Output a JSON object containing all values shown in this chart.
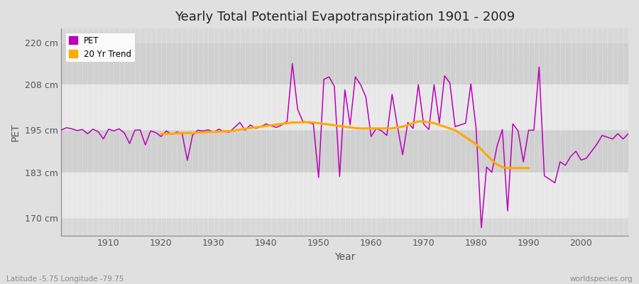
{
  "title": "Yearly Total Potential Evapotranspiration 1901 - 2009",
  "xlabel": "Year",
  "ylabel": "PET",
  "bottom_left": "Latitude -5.75 Longitude -79.75",
  "bottom_right": "worldspecies.org",
  "start_year": 1901,
  "end_year": 2009,
  "pet_color": "#bb00bb",
  "trend_color": "#ffaa00",
  "background_color": "#e0e0e0",
  "plot_bg_color": "#d8d8d8",
  "grid_color": "#ffffff",
  "ytick_labels": [
    "170 cm",
    "183 cm",
    "195 cm",
    "208 cm",
    "220 cm"
  ],
  "ytick_values": [
    170,
    183,
    195,
    208,
    220
  ],
  "ylim": [
    165,
    224
  ],
  "pet_values": [
    195.1,
    195.7,
    195.4,
    194.9,
    195.2,
    194.0,
    195.3,
    194.6,
    192.5,
    195.3,
    194.8,
    195.4,
    194.2,
    191.2,
    195.0,
    195.1,
    190.8,
    194.8,
    194.3,
    193.2,
    194.8,
    193.8,
    194.5,
    194.0,
    186.4,
    193.6,
    195.0,
    194.8,
    195.1,
    194.4,
    195.3,
    194.6,
    194.5,
    195.8,
    197.2,
    195.0,
    196.5,
    195.5,
    196.0,
    196.8,
    196.2,
    195.8,
    196.5,
    197.5,
    214.0,
    201.0,
    197.5,
    197.2,
    196.8,
    181.5,
    209.5,
    210.2,
    207.5,
    181.8,
    206.5,
    196.5,
    210.2,
    208.0,
    204.5,
    193.2,
    195.5,
    194.8,
    193.5,
    205.2,
    196.2,
    188.0,
    197.2,
    195.5,
    208.0,
    196.8,
    195.2,
    208.0,
    197.0,
    210.5,
    208.5,
    196.0,
    196.5,
    197.0,
    208.2,
    195.5,
    167.2,
    184.5,
    183.0,
    190.5,
    195.2,
    172.0,
    196.8,
    194.8,
    186.0,
    195.0,
    195.0,
    213.0,
    182.0,
    181.0,
    180.0,
    186.0,
    185.0,
    187.5,
    189.0,
    186.5,
    187.0,
    189.0,
    191.0,
    193.5,
    193.0,
    192.5,
    194.0,
    192.5,
    194.0
  ],
  "trend_values": [
    null,
    null,
    null,
    null,
    null,
    null,
    null,
    null,
    null,
    null,
    null,
    null,
    null,
    null,
    null,
    null,
    null,
    null,
    null,
    194.0,
    194.0,
    194.0,
    194.1,
    194.2,
    194.2,
    194.2,
    194.3,
    194.4,
    194.5,
    194.5,
    194.6,
    194.7,
    194.8,
    194.9,
    195.2,
    195.4,
    195.6,
    195.8,
    196.0,
    196.2,
    196.4,
    196.6,
    196.8,
    197.0,
    197.2,
    197.2,
    197.3,
    197.3,
    197.2,
    197.0,
    196.8,
    196.6,
    196.4,
    196.2,
    196.0,
    195.8,
    195.6,
    195.5,
    195.5,
    195.5,
    195.5,
    195.5,
    195.5,
    195.5,
    195.8,
    196.0,
    196.5,
    197.0,
    197.5,
    197.5,
    197.2,
    197.0,
    196.5,
    196.0,
    195.5,
    195.0,
    194.0,
    193.0,
    192.0,
    191.0,
    189.5,
    188.0,
    186.5,
    185.2,
    184.5,
    184.2,
    184.2,
    184.2,
    184.2,
    184.2,
    null,
    null,
    null,
    null,
    null,
    null,
    null,
    null,
    null,
    null,
    null,
    null,
    null,
    null,
    null,
    null,
    null,
    null,
    null
  ]
}
